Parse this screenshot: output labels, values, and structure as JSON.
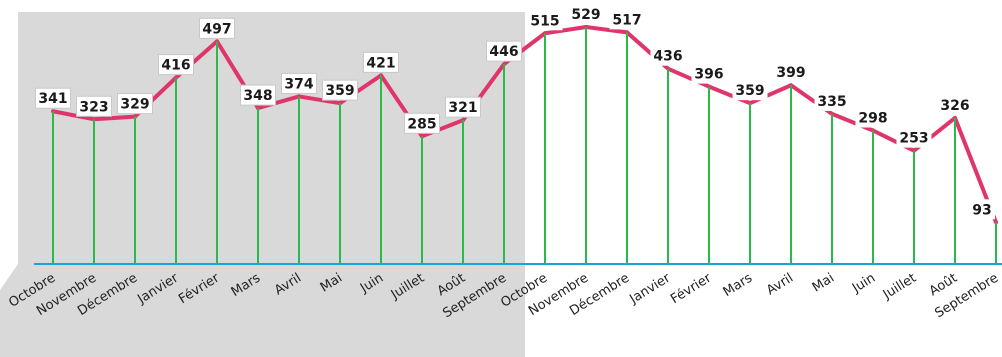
{
  "chart_data": {
    "type": "line",
    "categories": [
      "Octobre",
      "Novembre",
      "Décembre",
      "Janvier",
      "Février",
      "Mars",
      "Avril",
      "Mai",
      "Juin",
      "Juillet",
      "Août",
      "Septembre",
      "Octobre",
      "Novembre",
      "Décembre",
      "Janvier",
      "Février",
      "Mars",
      "Avril",
      "Mai",
      "Juin",
      "Juillet",
      "Août",
      "Septembre"
    ],
    "values": [
      341,
      323,
      329,
      416,
      497,
      348,
      374,
      359,
      421,
      285,
      321,
      446,
      515,
      529,
      517,
      436,
      396,
      359,
      399,
      335,
      298,
      253,
      326,
      93
    ],
    "highlighted_range": [
      0,
      11
    ],
    "ylim": [
      0,
      560
    ],
    "grid": false,
    "colors": {
      "line": "#e0356a",
      "stem": "#2db84a",
      "baseline": "#1aa3d9",
      "shade": "#d9d9d9",
      "label_box": "#ffffff",
      "label_border": "#c8c8c8",
      "text": "#1a1a1a"
    }
  }
}
